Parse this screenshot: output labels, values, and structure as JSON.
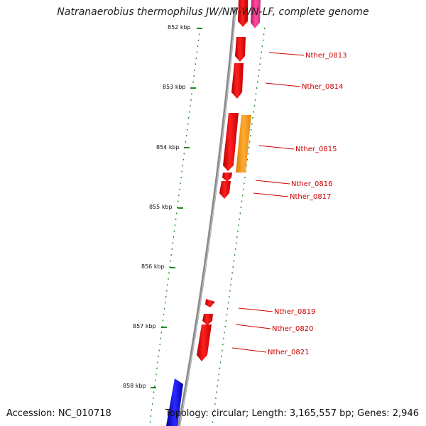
{
  "title": "Natranaerobius thermophilus JW/NM-WN-LF, complete genome",
  "accession": "Accession: NC_010718",
  "summary": "Topology: circular; Length: 3,165,557 bp; Genes: 2,946",
  "colors": {
    "background": "#ffffff",
    "backbone": "#8a8a8a",
    "tick": "#1e8a1e",
    "gene_forward": "#e41a1c",
    "gene_orange": "#f39c1a",
    "gene_pink": "#e83e8c",
    "gene_blue": "#1a1ae4",
    "label": "#cc0000"
  },
  "kbp_labels": [
    "852 kbp",
    "853 kbp",
    "854 kbp",
    "855 kbp",
    "856 kbp",
    "857 kbp",
    "858 kbp"
  ],
  "gene_labels": [
    "Nther_0813",
    "Nther_0814",
    "Nther_0815",
    "Nther_0816",
    "Nther_0817",
    "Nther_0819",
    "Nther_0820",
    "Nther_0821"
  ]
}
